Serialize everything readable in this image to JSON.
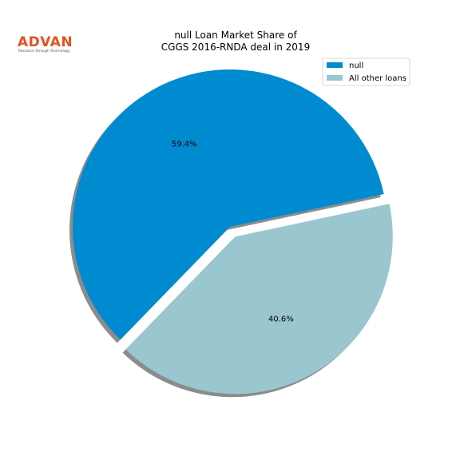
{
  "logo": {
    "wordmark": "ADVAN",
    "tagline": "Research through Technology",
    "color": "#e2531f"
  },
  "chart_data": {
    "type": "pie",
    "title_lines": [
      "null Loan Market Share of",
      "CGGS 2016-RNDA deal in 2019"
    ],
    "categories": [
      "null",
      "All other loans"
    ],
    "values": [
      59.4,
      40.6
    ],
    "labels": [
      "59.4%",
      "40.6%"
    ],
    "colors": [
      "#008bd0",
      "#9ac6cf"
    ],
    "exploded": true,
    "shadow": true,
    "legend_position": "top-right"
  }
}
